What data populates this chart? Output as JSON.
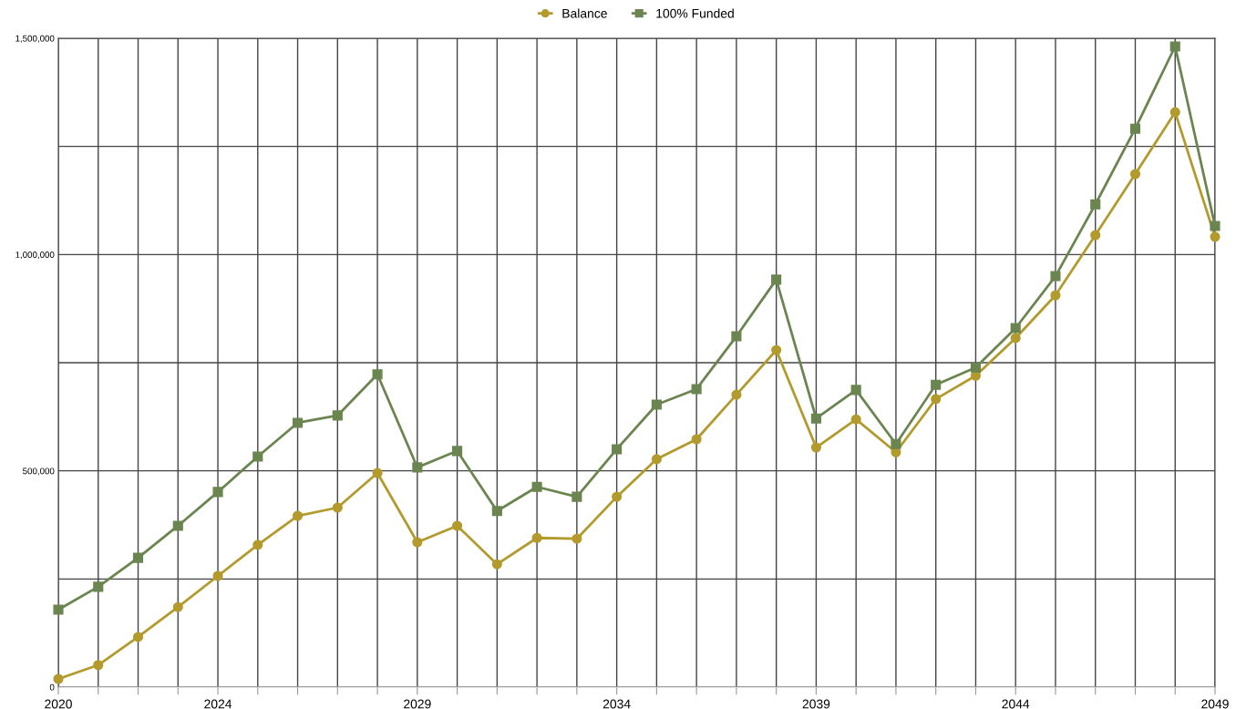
{
  "chart_data": {
    "type": "line",
    "x": [
      2020,
      2021,
      2022,
      2023,
      2024,
      2025,
      2026,
      2027,
      2028,
      2029,
      2030,
      2031,
      2032,
      2033,
      2034,
      2035,
      2036,
      2037,
      2038,
      2039,
      2040,
      2041,
      2042,
      2043,
      2044,
      2045,
      2046,
      2047,
      2048,
      2049
    ],
    "series": [
      {
        "name": "Balance",
        "color": "#b39a2c",
        "marker": "circle",
        "values": [
          19000,
          51000,
          116000,
          185000,
          257000,
          329000,
          396000,
          415000,
          495000,
          335000,
          373000,
          284000,
          345000,
          343000,
          440000,
          527000,
          573000,
          676000,
          779000,
          554000,
          619000,
          543000,
          666000,
          720000,
          807000,
          906000,
          1045000,
          1186000,
          1329000,
          1041000
        ]
      },
      {
        "name": "100% Funded",
        "color": "#6a8550",
        "marker": "square",
        "values": [
          179000,
          232000,
          299000,
          373000,
          451000,
          533000,
          611000,
          628000,
          723000,
          508000,
          546000,
          407000,
          463000,
          440000,
          550000,
          653000,
          689000,
          811000,
          942000,
          621000,
          687000,
          562000,
          699000,
          739000,
          830000,
          950000,
          1116000,
          1291000,
          1481000,
          1066000
        ]
      }
    ],
    "xlim": [
      2020,
      2049
    ],
    "xticks": [
      2020,
      {
        "value": 2021,
        "label": null
      },
      {
        "value": 2022,
        "label": null
      },
      {
        "value": 2023,
        "label": null
      },
      2024,
      {
        "value": 2025,
        "label": null
      },
      {
        "value": 2026,
        "label": null
      },
      {
        "value": 2027,
        "label": null
      },
      {
        "value": 2028,
        "label": null
      },
      2029,
      {
        "value": 2030,
        "label": null
      },
      {
        "value": 2031,
        "label": null
      },
      {
        "value": 2032,
        "label": null
      },
      {
        "value": 2033,
        "label": null
      },
      2034,
      {
        "value": 2035,
        "label": null
      },
      {
        "value": 2036,
        "label": null
      },
      {
        "value": 2037,
        "label": null
      },
      {
        "value": 2038,
        "label": null
      },
      2039,
      {
        "value": 2040,
        "label": null
      },
      {
        "value": 2041,
        "label": null
      },
      {
        "value": 2042,
        "label": null
      },
      {
        "value": 2043,
        "label": null
      },
      2044,
      {
        "value": 2045,
        "label": null
      },
      {
        "value": 2046,
        "label": null
      },
      {
        "value": 2047,
        "label": null
      },
      {
        "value": 2048,
        "label": null
      },
      2049
    ],
    "ylim": [
      0,
      1500000
    ],
    "yticks": [
      0,
      {
        "value": 250000,
        "label": null
      },
      {
        "value": 500000,
        "label": "500,000"
      },
      {
        "value": 750000,
        "label": null
      },
      {
        "value": 1000000,
        "label": "1,000,000"
      },
      {
        "value": 1250000,
        "label": null
      },
      {
        "value": 1500000,
        "label": "1,500,000"
      }
    ],
    "grid": true,
    "legend": "top",
    "line_style": "solid"
  }
}
